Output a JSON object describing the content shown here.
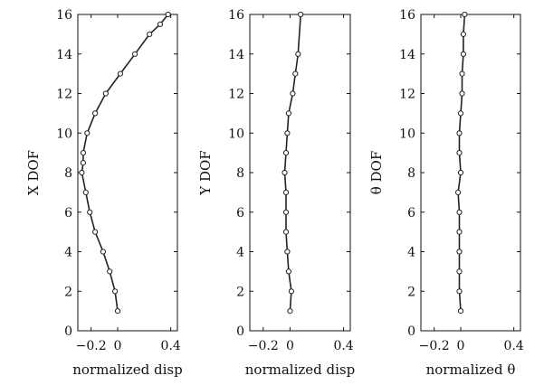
{
  "chart_data": [
    {
      "type": "line",
      "xlabel": "normalized disp",
      "ylabel": "X DOF",
      "xlim": [
        -0.3,
        0.45
      ],
      "ylim": [
        0,
        16
      ],
      "xticks": [
        -0.2,
        0,
        0.4
      ],
      "xtick_labels": [
        "−0.2",
        "0",
        "0.4"
      ],
      "yticks": [
        0,
        2,
        4,
        6,
        8,
        10,
        12,
        14,
        16
      ],
      "ytick_labels": [
        "0",
        "2",
        "4",
        "6",
        "8",
        "10",
        "12",
        "14",
        "16"
      ],
      "series": [
        {
          "x": [
            0.0,
            -0.02,
            -0.06,
            -0.11,
            -0.17,
            -0.21,
            -0.24,
            -0.27,
            -0.26,
            -0.26,
            -0.23,
            -0.17,
            -0.09,
            0.02,
            0.13,
            0.24,
            0.32,
            0.38
          ],
          "y": [
            1,
            2,
            3,
            4,
            5,
            6,
            7,
            8,
            8.5,
            9,
            10,
            11,
            12,
            13,
            14,
            15,
            15.5,
            16
          ]
        }
      ]
    },
    {
      "type": "line",
      "xlabel": "normalized disp",
      "ylabel": "Y DOF",
      "xlim": [
        -0.3,
        0.45
      ],
      "ylim": [
        0,
        16
      ],
      "xticks": [
        -0.2,
        0,
        0.4
      ],
      "xtick_labels": [
        "−0.2",
        "0",
        "0.4"
      ],
      "yticks": [
        0,
        2,
        4,
        6,
        8,
        10,
        12,
        14,
        16
      ],
      "ytick_labels": [
        "0",
        "2",
        "4",
        "6",
        "8",
        "10",
        "12",
        "14",
        "16"
      ],
      "series": [
        {
          "x": [
            0.0,
            0.01,
            -0.01,
            -0.02,
            -0.03,
            -0.03,
            -0.03,
            -0.04,
            -0.03,
            -0.02,
            -0.01,
            0.02,
            0.04,
            0.06,
            0.08
          ],
          "y": [
            1,
            2,
            3,
            4,
            5,
            6,
            7,
            8,
            9,
            10,
            11,
            12,
            13,
            14,
            16
          ]
        }
      ]
    },
    {
      "type": "line",
      "xlabel": "normalized θ",
      "ylabel": "θ DOF",
      "xlim": [
        -0.3,
        0.45
      ],
      "ylim": [
        0,
        16
      ],
      "xticks": [
        -0.2,
        0,
        0.4
      ],
      "xtick_labels": [
        "−0.2",
        "0",
        "0.4"
      ],
      "yticks": [
        0,
        2,
        4,
        6,
        8,
        10,
        12,
        14,
        16
      ],
      "ytick_labels": [
        "0",
        "2",
        "4",
        "6",
        "8",
        "10",
        "12",
        "14",
        "16"
      ],
      "series": [
        {
          "x": [
            0.0,
            -0.01,
            -0.01,
            -0.01,
            -0.01,
            -0.01,
            -0.02,
            0.0,
            -0.01,
            -0.01,
            0.0,
            0.01,
            0.01,
            0.02,
            0.02,
            0.03
          ],
          "y": [
            1,
            2,
            3,
            4,
            5,
            6,
            7,
            8,
            9,
            10,
            11,
            12,
            13,
            14,
            15,
            16
          ]
        }
      ]
    }
  ]
}
